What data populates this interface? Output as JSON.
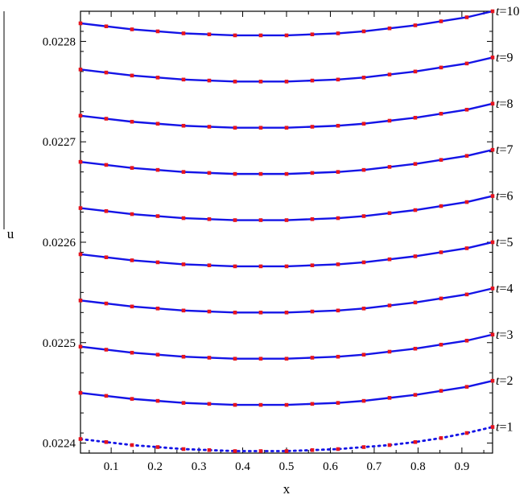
{
  "chart_data": {
    "type": "line",
    "title": "",
    "xlabel": "x",
    "ylabel": "u",
    "xlim": [
      0.03,
      0.97
    ],
    "ylim": [
      0.02239,
      0.02283
    ],
    "x_ticks": [
      0.1,
      0.2,
      0.3,
      0.4,
      0.5,
      0.6,
      0.7,
      0.8,
      0.9
    ],
    "y_ticks": [
      0.0224,
      0.0225,
      0.0226,
      0.0227,
      0.0228
    ],
    "x_tick_labels": [
      "0.1",
      "0.2",
      "0.3",
      "0.4",
      "0.5",
      "0.6",
      "0.7",
      "0.8",
      "0.9"
    ],
    "y_tick_labels": [
      "0.0224",
      "0.0225",
      "0.0226",
      "0.0227",
      "0.0228"
    ],
    "grid": false,
    "line_color": "#1414e6",
    "marker_color": "#e6141e",
    "x_points": [
      0.03,
      0.0887,
      0.1475,
      0.2062,
      0.265,
      0.3237,
      0.3825,
      0.4412,
      0.5,
      0.5587,
      0.6175,
      0.6762,
      0.735,
      0.7937,
      0.8525,
      0.9112,
      0.97
    ],
    "series": [
      {
        "label_text": "t=1",
        "line_style": "dotted",
        "values": [
          0.022404,
          0.022401,
          0.022398,
          0.022396,
          0.022394,
          0.022393,
          0.022392,
          0.022392,
          0.022392,
          0.022393,
          0.022394,
          0.022396,
          0.022398,
          0.022401,
          0.022405,
          0.02241,
          0.022416
        ]
      },
      {
        "label_text": "t=2",
        "line_style": "solid",
        "values": [
          0.02245,
          0.022447,
          0.022444,
          0.022442,
          0.02244,
          0.022439,
          0.022438,
          0.022438,
          0.022438,
          0.022439,
          0.02244,
          0.022442,
          0.022445,
          0.022448,
          0.022452,
          0.022456,
          0.022462
        ]
      },
      {
        "label_text": "t=3",
        "line_style": "solid",
        "values": [
          0.022496,
          0.022493,
          0.02249,
          0.022488,
          0.022486,
          0.022485,
          0.022484,
          0.022484,
          0.022484,
          0.022485,
          0.022486,
          0.022488,
          0.022491,
          0.022494,
          0.022498,
          0.022502,
          0.022508
        ]
      },
      {
        "label_text": "t=4",
        "line_style": "solid",
        "values": [
          0.022542,
          0.022539,
          0.022536,
          0.022534,
          0.022532,
          0.022531,
          0.02253,
          0.02253,
          0.02253,
          0.022531,
          0.022532,
          0.022534,
          0.022537,
          0.02254,
          0.022544,
          0.022548,
          0.022554
        ]
      },
      {
        "label_text": "t=5",
        "line_style": "solid",
        "values": [
          0.022588,
          0.022585,
          0.022582,
          0.02258,
          0.022578,
          0.022577,
          0.022576,
          0.022576,
          0.022576,
          0.022577,
          0.022578,
          0.02258,
          0.022583,
          0.022586,
          0.02259,
          0.022594,
          0.0226
        ]
      },
      {
        "label_text": "t=6",
        "line_style": "solid",
        "values": [
          0.022634,
          0.022631,
          0.022628,
          0.022626,
          0.022624,
          0.022623,
          0.022622,
          0.022622,
          0.022622,
          0.022623,
          0.022624,
          0.022626,
          0.022629,
          0.022632,
          0.022636,
          0.02264,
          0.022646
        ]
      },
      {
        "label_text": "t=7",
        "line_style": "solid",
        "values": [
          0.02268,
          0.022677,
          0.022674,
          0.022672,
          0.02267,
          0.022669,
          0.022668,
          0.022668,
          0.022668,
          0.022669,
          0.02267,
          0.022672,
          0.022675,
          0.022678,
          0.022682,
          0.022686,
          0.022692
        ]
      },
      {
        "label_text": "t=8",
        "line_style": "solid",
        "values": [
          0.022726,
          0.022723,
          0.02272,
          0.022718,
          0.022716,
          0.022715,
          0.022714,
          0.022714,
          0.022714,
          0.022715,
          0.022716,
          0.022718,
          0.022721,
          0.022724,
          0.022728,
          0.022732,
          0.022738
        ]
      },
      {
        "label_text": "t=9",
        "line_style": "solid",
        "values": [
          0.022772,
          0.022769,
          0.022766,
          0.022764,
          0.022762,
          0.022761,
          0.02276,
          0.02276,
          0.02276,
          0.022761,
          0.022762,
          0.022764,
          0.022767,
          0.02277,
          0.022774,
          0.022778,
          0.022784
        ]
      },
      {
        "label_text": "t=10",
        "line_style": "solid",
        "values": [
          0.022818,
          0.022815,
          0.022812,
          0.02281,
          0.022808,
          0.022807,
          0.022806,
          0.022806,
          0.022806,
          0.022807,
          0.022808,
          0.02281,
          0.022813,
          0.022816,
          0.02282,
          0.022824,
          0.02283
        ]
      }
    ]
  }
}
